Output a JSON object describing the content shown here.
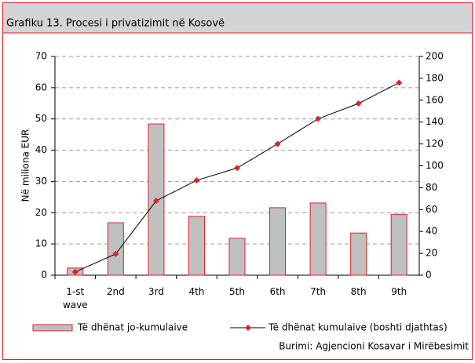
{
  "chart_data": {
    "type": "bar",
    "title": "Grafiku 13. Procesi i privatizimit në Kosovë",
    "ylabel": "Në miliona EUR",
    "source": "Burimi: Agjencioni Kosavar i Mirëbesimit",
    "categories": [
      "1-st wave",
      "2nd",
      "3rd",
      "4th",
      "5th",
      "6th",
      "7th",
      "8th",
      "9th"
    ],
    "series": [
      {
        "name": "Të dhënat jo-kumulaive",
        "type": "bar",
        "color": "#c0c0c0",
        "edge_color": "#e0202a",
        "values": [
          2.3,
          16.8,
          48.4,
          18.8,
          11.8,
          21.6,
          23.1,
          13.5,
          19.5
        ]
      },
      {
        "name": "Të dhënat kumulaive (boshti djathtas)",
        "type": "line",
        "axis": "y2",
        "color": "#000000",
        "marker_color": "#e0202a",
        "values": [
          3,
          19.4,
          68,
          86.7,
          98,
          120,
          143,
          157,
          176
        ]
      }
    ],
    "ylim": [
      0,
      70
    ],
    "yticks": [
      0,
      10,
      20,
      30,
      40,
      50,
      60,
      70
    ],
    "y2lim": [
      0,
      200
    ],
    "y2ticks": [
      0,
      20,
      40,
      60,
      80,
      100,
      120,
      140,
      160,
      180,
      200
    ],
    "grid": true
  }
}
